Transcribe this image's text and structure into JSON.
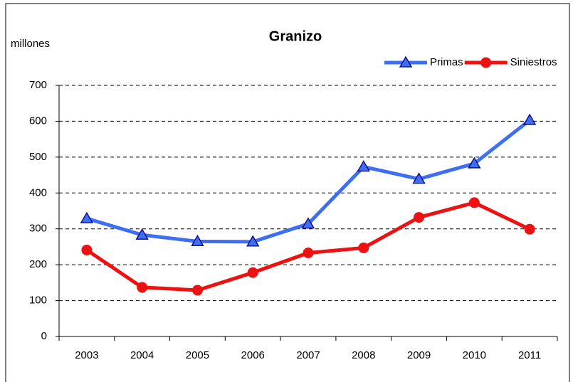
{
  "chart_data": {
    "type": "line",
    "title": "Granizo",
    "y_label": "millones",
    "categories": [
      "2003",
      "2004",
      "2005",
      "2006",
      "2007",
      "2008",
      "2009",
      "2010",
      "2011"
    ],
    "series": [
      {
        "name": "Primas",
        "color": "#3d6ff0",
        "marker": "triangle",
        "values": [
          329,
          283,
          265,
          264,
          314,
          473,
          439,
          482,
          603
        ]
      },
      {
        "name": "Siniestros",
        "color": "#ee1111",
        "marker": "circle",
        "values": [
          241,
          137,
          129,
          178,
          233,
          247,
          332,
          373,
          299
        ]
      }
    ],
    "ylim": [
      0,
      700
    ],
    "yticks": [
      0,
      100,
      200,
      300,
      400,
      500,
      600,
      700
    ],
    "grid": true,
    "legend": "top-right"
  }
}
